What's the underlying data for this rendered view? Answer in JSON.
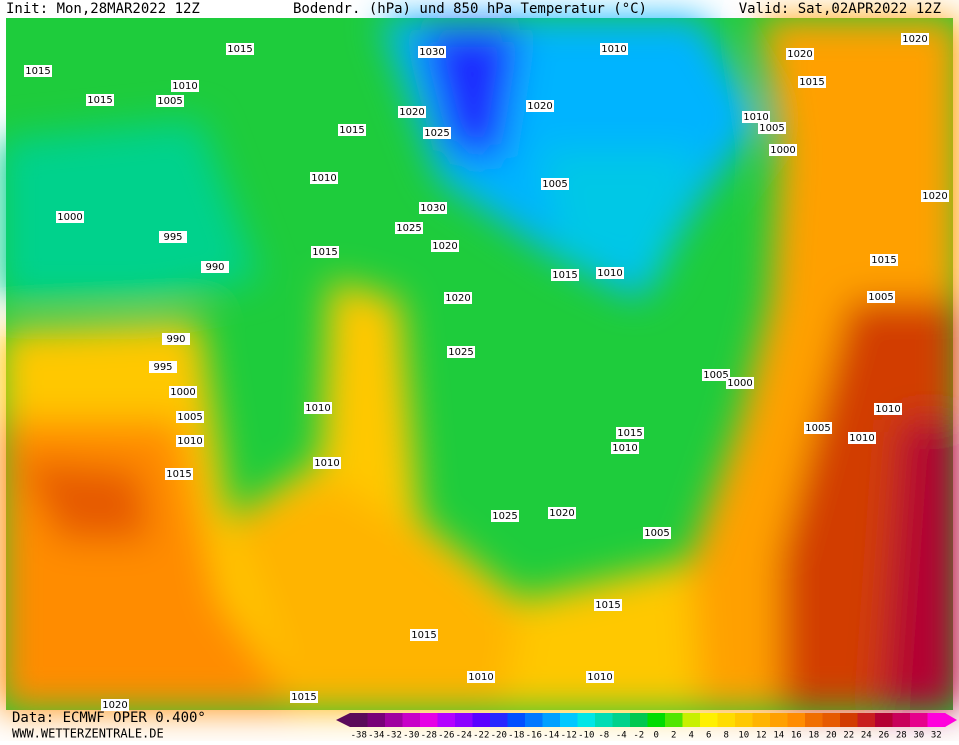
{
  "header": {
    "init": "Init: Mon,28MAR2022 12Z",
    "title": "Bodendr. (hPa) und 850 hPa Temperatur (°C)",
    "valid": "Valid: Sat,02APR2022 12Z"
  },
  "footer": {
    "source": "Data: ECMWF OPER 0.400°",
    "site": "WWW.WETTERZENTRALE.DE"
  },
  "isobar_labels": [
    "1015",
    "1010",
    "1015",
    "1005",
    "1015",
    "1030",
    "1010",
    "1020",
    "1020",
    "1015",
    "1020",
    "1025",
    "1015",
    "1020",
    "1010",
    "1005",
    "1000",
    "1010",
    "1005",
    "1030",
    "1025",
    "1020",
    "1000",
    "995",
    "990",
    "1015",
    "1015",
    "1010",
    "1015",
    "1020",
    "1005",
    "1020",
    "990",
    "995",
    "1000",
    "1025",
    "1005",
    "1000",
    "1005",
    "1010",
    "1010",
    "1010",
    "1005",
    "1010",
    "1015",
    "1010",
    "1015",
    "1010",
    "1025",
    "1020",
    "1005",
    "1015",
    "1015",
    "1010",
    "1010",
    "1015",
    "1020"
  ],
  "colorbar": {
    "ticks": [
      -38,
      -34,
      -32,
      -30,
      -28,
      -26,
      -24,
      -22,
      -20,
      -18,
      -16,
      -14,
      -12,
      -10,
      -8,
      -4,
      -2,
      0,
      2,
      4,
      6,
      8,
      10,
      12,
      14,
      16,
      18,
      20,
      22,
      24,
      26,
      28,
      30,
      32
    ],
    "colors": [
      "#5a0a5a",
      "#780078",
      "#a000a0",
      "#c800c8",
      "#e600e6",
      "#b400ff",
      "#8c00ff",
      "#5a00ff",
      "#2828ff",
      "#0050ff",
      "#0078ff",
      "#00a0ff",
      "#00c8ff",
      "#00e6e6",
      "#00dcb4",
      "#00d28c",
      "#00c850",
      "#00dc00",
      "#50e600",
      "#c8f000",
      "#fff000",
      "#ffdc00",
      "#ffc800",
      "#ffb400",
      "#ffa000",
      "#ff8c00",
      "#f06e00",
      "#e65a00",
      "#d23c00",
      "#c81e1e",
      "#b40032",
      "#c8005a",
      "#e6008c",
      "#ff00dc"
    ]
  }
}
